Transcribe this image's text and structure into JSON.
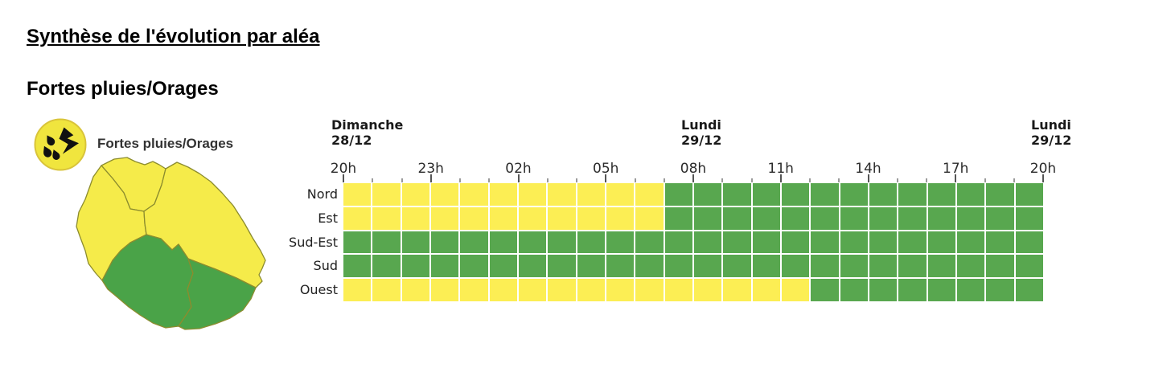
{
  "page": {
    "title": "Synthèse de l'évolution par aléa",
    "subtitle": "Fortes pluies/Orages"
  },
  "hazard": {
    "icon": "heavy-rain-thunderstorm-icon",
    "label": "Fortes pluies/Orages"
  },
  "colors": {
    "yellow": "#fcee54",
    "green": "#58a74f",
    "map_yellow": "#f5eb4a",
    "map_green": "#4aa348",
    "map_border": "#8c8c2e",
    "badge_yellow": "#f0e53e",
    "badge_border": "#d9c43a"
  },
  "map": {
    "island": "La Réunion",
    "regions": [
      {
        "name": "Nord",
        "status": "yellow"
      },
      {
        "name": "Est",
        "status": "yellow"
      },
      {
        "name": "Ouest",
        "status": "yellow"
      },
      {
        "name": "Sud",
        "status": "green"
      },
      {
        "name": "Sud-Est",
        "status": "green"
      }
    ]
  },
  "timeline": {
    "hours_total": 24,
    "day_headers": [
      {
        "label": "Dimanche",
        "date": "28/12",
        "tick_index": 0
      },
      {
        "label": "Lundi",
        "date": "29/12",
        "tick_index": 12
      },
      {
        "label": "Lundi",
        "date": "29/12",
        "tick_index": 24
      }
    ],
    "hour_labels": [
      "20h",
      "23h",
      "02h",
      "05h",
      "08h",
      "11h",
      "14h",
      "17h",
      "20h"
    ]
  },
  "chart_data": {
    "type": "heatmap",
    "title": "Fortes pluies/Orages — Synthèse de l'évolution par aléa",
    "x_start": "Dimanche 28/12 20h",
    "x_end": "Lundi 29/12 20h",
    "x_tick_labels": [
      "20h",
      "23h",
      "02h",
      "05h",
      "08h",
      "11h",
      "14h",
      "17h",
      "20h"
    ],
    "cell_duration_hours": 1,
    "categories": [
      "Nord",
      "Est",
      "Sud-Est",
      "Sud",
      "Ouest"
    ],
    "value_legend": {
      "Y": "yellow",
      "G": "green"
    },
    "series": [
      {
        "name": "Nord",
        "values": [
          "Y",
          "Y",
          "Y",
          "Y",
          "Y",
          "Y",
          "Y",
          "Y",
          "Y",
          "Y",
          "Y",
          "G",
          "G",
          "G",
          "G",
          "G",
          "G",
          "G",
          "G",
          "G",
          "G",
          "G",
          "G",
          "G"
        ]
      },
      {
        "name": "Est",
        "values": [
          "Y",
          "Y",
          "Y",
          "Y",
          "Y",
          "Y",
          "Y",
          "Y",
          "Y",
          "Y",
          "Y",
          "G",
          "G",
          "G",
          "G",
          "G",
          "G",
          "G",
          "G",
          "G",
          "G",
          "G",
          "G",
          "G"
        ]
      },
      {
        "name": "Sud-Est",
        "values": [
          "G",
          "G",
          "G",
          "G",
          "G",
          "G",
          "G",
          "G",
          "G",
          "G",
          "G",
          "G",
          "G",
          "G",
          "G",
          "G",
          "G",
          "G",
          "G",
          "G",
          "G",
          "G",
          "G",
          "G"
        ]
      },
      {
        "name": "Sud",
        "values": [
          "G",
          "G",
          "G",
          "G",
          "G",
          "G",
          "G",
          "G",
          "G",
          "G",
          "G",
          "G",
          "G",
          "G",
          "G",
          "G",
          "G",
          "G",
          "G",
          "G",
          "G",
          "G",
          "G",
          "G"
        ]
      },
      {
        "name": "Ouest",
        "values": [
          "Y",
          "Y",
          "Y",
          "Y",
          "Y",
          "Y",
          "Y",
          "Y",
          "Y",
          "Y",
          "Y",
          "Y",
          "Y",
          "Y",
          "Y",
          "Y",
          "G",
          "G",
          "G",
          "G",
          "G",
          "G",
          "G",
          "G"
        ]
      }
    ]
  }
}
